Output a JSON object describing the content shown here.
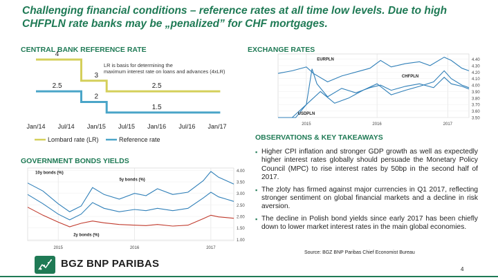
{
  "slide": {
    "title": "Challenging financial conditions – reference rates at all time low levels. Due to high CHFPLN rate banks may be „penalized” for CHF mortgages.",
    "page_number": "4",
    "source": "Source: BGZ BNP Paribas Chief Economist Bureau"
  },
  "logo": {
    "text": "BGZ BNP PARIBAS",
    "icon": "bnp-stars-logo-icon"
  },
  "colors": {
    "accent_green": "#1f7a55",
    "lombard": "#d4cf5a",
    "reference": "#4aa5c8",
    "chart_line": "#2f7fb8",
    "chart_line_red": "#c0392b"
  },
  "sections": {
    "central_bank": "CENTRAL BANK REFERENCE RATE",
    "exchange": "EXCHANGE RATES",
    "bonds": "GOVERNMENT BONDS YIELDS",
    "observations": "OBSERVATIONS & KEY TAKEAWAYS"
  },
  "observations": [
    "Higher CPI inflation and stronger GDP growth as well as expectedly higher interest rates globally should persuade the Monetary Policy Council (MPC) to rise interest rates by 50bp in the second half of 2017.",
    "The zloty has firmed against major currencies in Q1 2017, reflecting stronger sentiment on global financial markets and a decline in risk aversion.",
    "The decline in Polish bond yields since early 2017 has been chiefly down to lower market interest rates in the main global economies."
  ],
  "chart_data": [
    {
      "id": "reference-rate",
      "type": "line",
      "title": "",
      "annotation": "LR is basis for determining the maximum interest rate on loans and advances (4xLR)",
      "x_tick_labels": [
        "Jan/14",
        "Jul/14",
        "Jan/15",
        "Jul/15",
        "Jan/16",
        "Jul/16",
        "Jan/17"
      ],
      "xlim": [
        2014.0,
        2017.0
      ],
      "ylim": [
        1.2,
        4.2
      ],
      "legend": "bottom",
      "series": [
        {
          "name": "Lombard rate (LR)",
          "color": "#d4cf5a",
          "points": [
            [
              2014.0,
              4.0
            ],
            [
              2014.75,
              4.0
            ],
            [
              2014.75,
              3.0
            ],
            [
              2015.17,
              3.0
            ],
            [
              2015.17,
              2.5
            ],
            [
              2017.05,
              2.5
            ]
          ]
        },
        {
          "name": "Reference rate",
          "color": "#4aa5c8",
          "points": [
            [
              2014.0,
              2.5
            ],
            [
              2014.75,
              2.5
            ],
            [
              2014.75,
              2.0
            ],
            [
              2015.17,
              2.0
            ],
            [
              2015.17,
              1.5
            ],
            [
              2017.05,
              1.5
            ]
          ]
        }
      ],
      "data_labels": [
        {
          "text": "4",
          "x": 2014.35,
          "y": 4.0
        },
        {
          "text": "3",
          "x": 2015.0,
          "y": 3.0
        },
        {
          "text": "2.5",
          "x": 2016.0,
          "y": 2.5
        },
        {
          "text": "2.5",
          "x": 2014.35,
          "y": 2.5
        },
        {
          "text": "2",
          "x": 2015.0,
          "y": 2.0
        },
        {
          "text": "1.5",
          "x": 2016.0,
          "y": 1.5
        }
      ]
    },
    {
      "id": "exchange-rates",
      "type": "line",
      "x_tick_labels": [
        "2015",
        "2016",
        "2017"
      ],
      "x_ticks": [
        2015,
        2016,
        2017
      ],
      "xlim": [
        2014.6,
        2017.3
      ],
      "y_ticks": [
        "4.40",
        "4.30",
        "4.20",
        "4.10",
        "4.00",
        "3.90",
        "3.80",
        "3.70",
        "3.60",
        "3.50"
      ],
      "ylim": [
        3.5,
        4.48
      ],
      "series": [
        {
          "name": "EURPLN",
          "color": "#2f7fb8",
          "points": [
            [
              2014.6,
              4.18
            ],
            [
              2014.8,
              4.22
            ],
            [
              2015.0,
              4.28
            ],
            [
              2015.1,
              4.18
            ],
            [
              2015.3,
              4.05
            ],
            [
              2015.5,
              4.14
            ],
            [
              2015.7,
              4.2
            ],
            [
              2015.9,
              4.26
            ],
            [
              2016.05,
              4.38
            ],
            [
              2016.2,
              4.28
            ],
            [
              2016.4,
              4.33
            ],
            [
              2016.6,
              4.36
            ],
            [
              2016.75,
              4.3
            ],
            [
              2016.95,
              4.43
            ],
            [
              2017.05,
              4.38
            ],
            [
              2017.2,
              4.26
            ],
            [
              2017.3,
              4.22
            ]
          ]
        },
        {
          "name": "CHFPLN",
          "color": "#2f7fb8",
          "points": [
            [
              2014.6,
              3.45
            ],
            [
              2014.85,
              3.5
            ],
            [
              2015.0,
              3.7
            ],
            [
              2015.08,
              4.25
            ],
            [
              2015.15,
              4.02
            ],
            [
              2015.3,
              3.82
            ],
            [
              2015.5,
              3.95
            ],
            [
              2015.7,
              3.88
            ],
            [
              2015.9,
              3.96
            ],
            [
              2016.05,
              4.0
            ],
            [
              2016.2,
              3.92
            ],
            [
              2016.4,
              3.98
            ],
            [
              2016.6,
              4.02
            ],
            [
              2016.8,
              3.96
            ],
            [
              2016.95,
              4.12
            ],
            [
              2017.05,
              4.02
            ],
            [
              2017.2,
              3.98
            ],
            [
              2017.3,
              3.94
            ]
          ]
        },
        {
          "name": "USDPLN",
          "color": "#2f7fb8",
          "points": [
            [
              2014.6,
              3.25
            ],
            [
              2014.8,
              3.45
            ],
            [
              2015.0,
              3.7
            ],
            [
              2015.2,
              3.9
            ],
            [
              2015.4,
              3.72
            ],
            [
              2015.6,
              3.8
            ],
            [
              2015.8,
              3.92
            ],
            [
              2016.0,
              4.02
            ],
            [
              2016.2,
              3.85
            ],
            [
              2016.4,
              3.92
            ],
            [
              2016.6,
              3.98
            ],
            [
              2016.8,
              4.05
            ],
            [
              2016.95,
              4.22
            ],
            [
              2017.05,
              4.1
            ],
            [
              2017.2,
              4.0
            ],
            [
              2017.3,
              3.96
            ]
          ]
        }
      ],
      "series_labels": [
        {
          "text": "EURPLN",
          "x": 2015.15,
          "y": 4.38
        },
        {
          "text": "CHFPLN",
          "x": 2016.35,
          "y": 4.12
        },
        {
          "text": "USDPLN",
          "x": 2014.88,
          "y": 3.54
        }
      ]
    },
    {
      "id": "bond-yields",
      "type": "line",
      "x_tick_labels": [
        "2015",
        "2016",
        "2017"
      ],
      "x_ticks": [
        2015,
        2016,
        2017
      ],
      "xlim": [
        2014.6,
        2017.3
      ],
      "y_ticks": [
        "4.00",
        "3.50",
        "3.00",
        "2.50",
        "2.00",
        "1.50",
        "1.00"
      ],
      "ylim": [
        0.95,
        4.1
      ],
      "series": [
        {
          "name": "10y bonds (%)",
          "color": "#2f7fb8",
          "points": [
            [
              2014.6,
              3.45
            ],
            [
              2014.8,
              3.1
            ],
            [
              2015.0,
              2.55
            ],
            [
              2015.15,
              2.2
            ],
            [
              2015.3,
              2.45
            ],
            [
              2015.45,
              3.25
            ],
            [
              2015.6,
              2.95
            ],
            [
              2015.8,
              2.75
            ],
            [
              2016.0,
              3.0
            ],
            [
              2016.15,
              2.9
            ],
            [
              2016.3,
              3.2
            ],
            [
              2016.5,
              2.95
            ],
            [
              2016.7,
              3.05
            ],
            [
              2016.9,
              3.55
            ],
            [
              2017.0,
              3.95
            ],
            [
              2017.1,
              3.7
            ],
            [
              2017.2,
              3.55
            ],
            [
              2017.3,
              3.4
            ]
          ]
        },
        {
          "name": "5y bonds (%)",
          "color": "#2f7fb8",
          "points": [
            [
              2014.6,
              2.95
            ],
            [
              2014.8,
              2.55
            ],
            [
              2015.0,
              2.1
            ],
            [
              2015.15,
              1.85
            ],
            [
              2015.3,
              2.1
            ],
            [
              2015.45,
              2.6
            ],
            [
              2015.6,
              2.35
            ],
            [
              2015.8,
              2.2
            ],
            [
              2016.0,
              2.3
            ],
            [
              2016.15,
              2.25
            ],
            [
              2016.3,
              2.35
            ],
            [
              2016.5,
              2.25
            ],
            [
              2016.7,
              2.35
            ],
            [
              2016.9,
              2.8
            ],
            [
              2017.0,
              3.05
            ],
            [
              2017.1,
              2.85
            ],
            [
              2017.2,
              2.75
            ],
            [
              2017.3,
              2.65
            ]
          ]
        },
        {
          "name": "2y bonds (%)",
          "color": "#c0392b",
          "points": [
            [
              2014.6,
              2.4
            ],
            [
              2014.8,
              2.05
            ],
            [
              2015.0,
              1.75
            ],
            [
              2015.15,
              1.55
            ],
            [
              2015.3,
              1.7
            ],
            [
              2015.45,
              1.8
            ],
            [
              2015.6,
              1.72
            ],
            [
              2015.8,
              1.65
            ],
            [
              2016.0,
              1.62
            ],
            [
              2016.15,
              1.6
            ],
            [
              2016.3,
              1.65
            ],
            [
              2016.5,
              1.58
            ],
            [
              2016.7,
              1.62
            ],
            [
              2016.9,
              1.9
            ],
            [
              2017.0,
              2.05
            ],
            [
              2017.1,
              1.98
            ],
            [
              2017.2,
              1.95
            ],
            [
              2017.3,
              1.92
            ]
          ]
        }
      ],
      "series_labels": [
        {
          "text": "10y bonds (%)",
          "x": 2014.7,
          "y": 3.85
        },
        {
          "text": "5y bonds (%)",
          "x": 2015.8,
          "y": 3.55
        },
        {
          "text": "2y bonds (%)",
          "x": 2015.2,
          "y": 1.15
        }
      ]
    }
  ]
}
